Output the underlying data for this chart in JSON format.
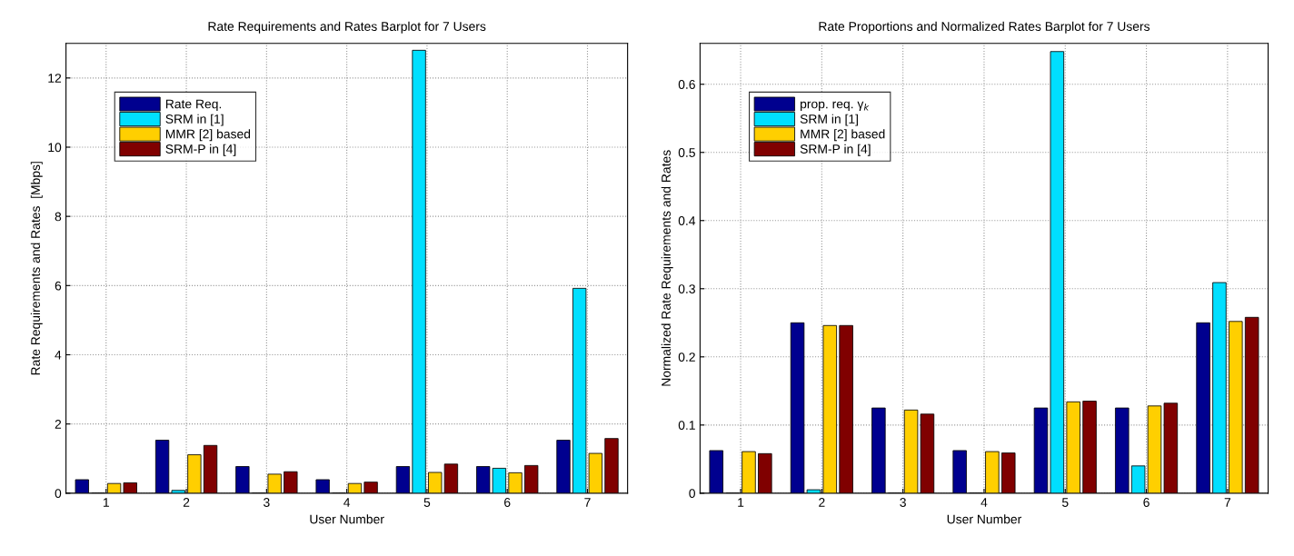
{
  "chart_data": [
    {
      "type": "bar",
      "title": "Rate Requirements and Rates Barplot for 7 Users",
      "xlabel": "User Number",
      "ylabel": "Rate Requirements and Rates  [Mbps]",
      "categories": [
        "1",
        "2",
        "3",
        "4",
        "5",
        "6",
        "7"
      ],
      "series": [
        {
          "name": "Rate Req.",
          "color": "#00008f",
          "values": [
            0.39,
            1.53,
            0.77,
            0.39,
            0.77,
            0.77,
            1.53
          ]
        },
        {
          "name": "SRM in [1]",
          "color": "#00dfff",
          "values": [
            0,
            0.08,
            0,
            0,
            12.8,
            0.72,
            5.92
          ]
        },
        {
          "name": "MMR [2] based",
          "color": "#ffcf00",
          "values": [
            0.28,
            1.11,
            0.55,
            0.28,
            0.6,
            0.59,
            1.15
          ]
        },
        {
          "name": "SRM-P in [4]",
          "color": "#800000",
          "values": [
            0.3,
            1.38,
            0.62,
            0.32,
            0.84,
            0.8,
            1.58
          ]
        }
      ],
      "ylim": [
        0,
        13
      ],
      "yticks": [
        0,
        2,
        4,
        6,
        8,
        10,
        12
      ],
      "grid": true,
      "legend": "top left"
    },
    {
      "type": "bar",
      "title": "Rate Proportions and Normalized Rates Barplot for 7 Users",
      "xlabel": "User Number",
      "ylabel": "Normalized Rate Requirements and Rates",
      "categories": [
        "1",
        "2",
        "3",
        "4",
        "5",
        "6",
        "7"
      ],
      "series": [
        {
          "name": "prop. req. γ$_{k}$",
          "color": "#00008f",
          "values": [
            0.0625,
            0.25,
            0.125,
            0.0625,
            0.125,
            0.125,
            0.25
          ]
        },
        {
          "name": "SRM in [1]",
          "color": "#00dfff",
          "values": [
            0,
            0.005,
            0,
            0,
            0.648,
            0.04,
            0.309
          ]
        },
        {
          "name": "MMR [2] based",
          "color": "#ffcf00",
          "values": [
            0.061,
            0.246,
            0.122,
            0.061,
            0.134,
            0.128,
            0.252
          ]
        },
        {
          "name": "SRM-P in [4]",
          "color": "#800000",
          "values": [
            0.058,
            0.246,
            0.116,
            0.059,
            0.135,
            0.132,
            0.258
          ]
        }
      ],
      "ylim": [
        0,
        0.66
      ],
      "yticks": [
        0,
        0.1,
        0.2,
        0.3,
        0.4,
        0.5,
        0.6
      ],
      "grid": true,
      "legend": "top left"
    }
  ]
}
